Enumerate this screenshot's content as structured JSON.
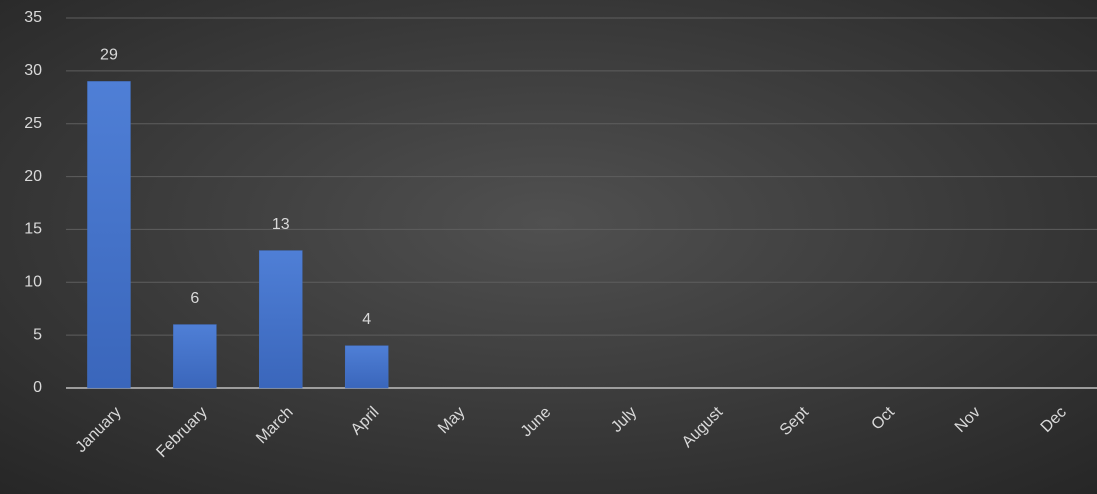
{
  "chart_data": {
    "type": "bar",
    "categories": [
      "January",
      "February",
      "March",
      "April",
      "May",
      "June",
      "July",
      "August",
      "Sept",
      "Oct",
      "Nov",
      "Dec"
    ],
    "values": [
      29,
      6,
      13,
      4,
      null,
      null,
      null,
      null,
      null,
      null,
      null,
      null
    ],
    "color": "#4472c4",
    "ylim": [
      0,
      35
    ],
    "yticks": [
      0,
      5,
      10,
      15,
      20,
      25,
      30,
      35
    ],
    "grid": true
  }
}
